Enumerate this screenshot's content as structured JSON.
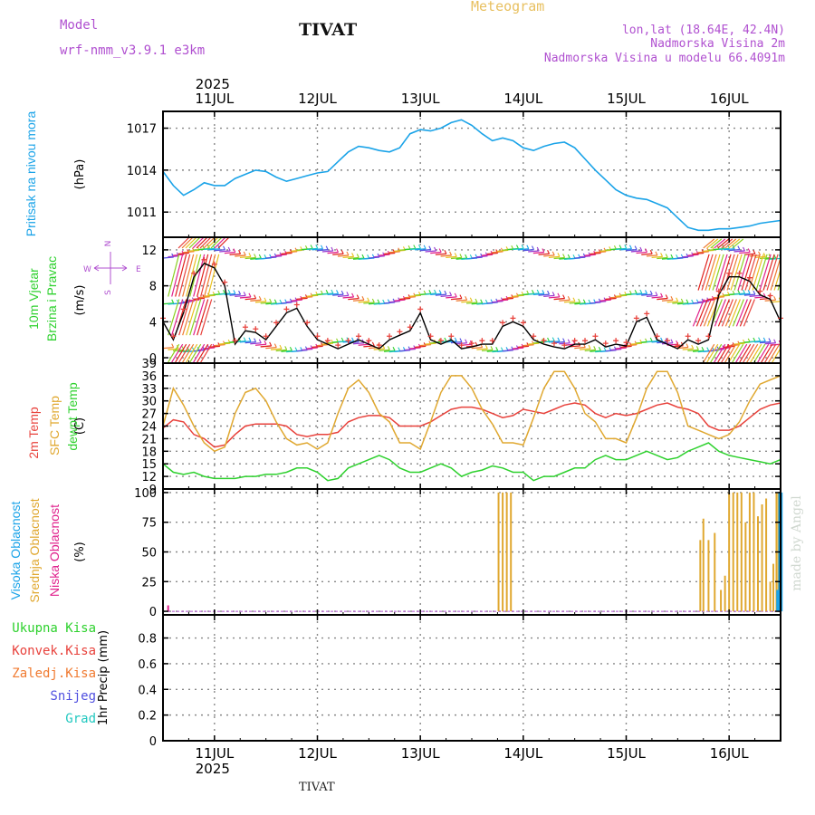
{
  "header": {
    "model_label": "Model",
    "model_name": "wrf-nmm_v3.9.1 e3km",
    "title": "TIVAT",
    "chart_name": "Meteogram",
    "lonlat": "lon,lat (18.64E, 42.4N)",
    "height_2m": "Nadmorska Visina 2m",
    "model_height": "Nadmorska Visina u modelu 66.4091m",
    "footer_title": "TIVAT",
    "watermark": "made by Angel"
  },
  "colors": {
    "pressure": "#1aa3e8",
    "t2m": "#e8423c",
    "sfc": "#e0a830",
    "dewpt": "#2ed12e",
    "wind_speed": "#000000",
    "high_cloud": "#1aa3e8",
    "mid_cloud": "#e0a830",
    "low_cloud": "#e0208c",
    "model": "#b050d0",
    "meteogram": "#e8c060"
  },
  "chart_data": [
    {
      "id": "pressure",
      "type": "line",
      "ylabel": "(hPa)",
      "side_labels": [
        "Pritisak na nivou mora"
      ],
      "yticks": [
        1011,
        1014,
        1017
      ],
      "ylim": [
        1009.2,
        1018.2
      ],
      "x": [
        10.5,
        10.6,
        10.7,
        10.8,
        10.9,
        11.0,
        11.1,
        11.2,
        11.3,
        11.4,
        11.5,
        11.6,
        11.7,
        11.8,
        11.9,
        12.0,
        12.1,
        12.2,
        12.3,
        12.4,
        12.5,
        12.6,
        12.7,
        12.8,
        12.9,
        13.0,
        13.1,
        13.2,
        13.3,
        13.4,
        13.5,
        13.6,
        13.7,
        13.8,
        13.9,
        14.0,
        14.1,
        14.2,
        14.3,
        14.4,
        14.5,
        14.6,
        14.7,
        14.8,
        14.9,
        15.0,
        15.1,
        15.2,
        15.3,
        15.4,
        15.5,
        15.6,
        15.7,
        15.8,
        15.9,
        16.0,
        16.1,
        16.2,
        16.3,
        16.4,
        16.5
      ],
      "values": [
        1013.9,
        1012.9,
        1012.2,
        1012.6,
        1013.1,
        1012.9,
        1012.9,
        1013.4,
        1013.7,
        1014.0,
        1013.9,
        1013.5,
        1013.2,
        1013.4,
        1013.6,
        1013.8,
        1013.9,
        1014.6,
        1015.3,
        1015.7,
        1015.6,
        1015.4,
        1015.3,
        1015.6,
        1016.6,
        1016.9,
        1016.8,
        1017.0,
        1017.4,
        1017.6,
        1017.2,
        1016.6,
        1016.1,
        1016.3,
        1016.1,
        1015.6,
        1015.4,
        1015.7,
        1015.9,
        1016.0,
        1015.6,
        1014.8,
        1014.0,
        1013.3,
        1012.6,
        1012.2,
        1012.0,
        1011.9,
        1011.6,
        1011.3,
        1010.6,
        1009.9,
        1009.7,
        1009.7,
        1009.8,
        1009.8,
        1009.9,
        1010.0,
        1010.2,
        1010.3,
        1010.4
      ]
    },
    {
      "id": "wind",
      "type": "line",
      "ylabel": "(m/s)",
      "side_labels": [
        "10m Vjetar",
        "Brzina i Pravac"
      ],
      "compass": [
        "W",
        "N",
        "E",
        "S"
      ],
      "yticks": [
        0,
        4,
        8,
        12
      ],
      "ylim": [
        -0.6,
        13.4
      ],
      "x": [
        10.5,
        10.6,
        10.7,
        10.8,
        10.9,
        11.0,
        11.1,
        11.2,
        11.3,
        11.4,
        11.5,
        11.6,
        11.7,
        11.8,
        11.9,
        12.0,
        12.1,
        12.2,
        12.3,
        12.4,
        12.5,
        12.6,
        12.7,
        12.8,
        12.9,
        13.0,
        13.1,
        13.2,
        13.3,
        13.4,
        13.5,
        13.6,
        13.7,
        13.8,
        13.9,
        14.0,
        14.1,
        14.2,
        14.3,
        14.4,
        14.5,
        14.6,
        14.7,
        14.8,
        14.9,
        15.0,
        15.1,
        15.2,
        15.3,
        15.4,
        15.5,
        15.6,
        15.7,
        15.8,
        15.9,
        16.0,
        16.1,
        16.2,
        16.3,
        16.4,
        16.5
      ],
      "values": [
        4,
        2,
        5,
        9,
        10.5,
        10,
        8,
        1.5,
        3,
        2.8,
        2,
        3.5,
        5,
        5.5,
        3.5,
        2,
        1.5,
        1,
        1.5,
        2,
        1.5,
        1,
        2,
        2.5,
        3,
        5,
        2,
        1.5,
        2,
        1,
        1.2,
        1.5,
        1.5,
        3.5,
        4,
        3.5,
        2,
        1.5,
        1.2,
        1,
        1.5,
        1.5,
        2,
        1.2,
        1.5,
        1.3,
        4,
        4.5,
        2,
        1.5,
        1,
        2,
        1.5,
        2,
        7,
        9,
        9,
        8.5,
        7,
        6.5,
        4
      ]
    },
    {
      "id": "temperature",
      "type": "line",
      "ylabel": "(C)",
      "side_labels": [
        "2m Temp",
        "SFC Temp",
        "dewpt Temp"
      ],
      "yticks": [
        9,
        12,
        15,
        18,
        21,
        24,
        27,
        30,
        33,
        36,
        39
      ],
      "ylim": [
        9,
        39
      ],
      "x": [
        10.5,
        10.6,
        10.7,
        10.8,
        10.9,
        11.0,
        11.1,
        11.2,
        11.3,
        11.4,
        11.5,
        11.6,
        11.7,
        11.8,
        11.9,
        12.0,
        12.1,
        12.2,
        12.3,
        12.4,
        12.5,
        12.6,
        12.7,
        12.8,
        12.9,
        13.0,
        13.1,
        13.2,
        13.3,
        13.4,
        13.5,
        13.6,
        13.7,
        13.8,
        13.9,
        14.0,
        14.1,
        14.2,
        14.3,
        14.4,
        14.5,
        14.6,
        14.7,
        14.8,
        14.9,
        15.0,
        15.1,
        15.2,
        15.3,
        15.4,
        15.5,
        15.6,
        15.7,
        15.8,
        15.9,
        16.0,
        16.1,
        16.2,
        16.3,
        16.4,
        16.5
      ],
      "series": [
        {
          "name": "2m Temp",
          "values": [
            23.5,
            25.5,
            25,
            22,
            21,
            19,
            19.5,
            22,
            24,
            24.5,
            24.5,
            24.5,
            24,
            22,
            21.5,
            22,
            22,
            22.5,
            25,
            26,
            26.5,
            26.5,
            26,
            24,
            24,
            24,
            25,
            26.5,
            28,
            28.5,
            28.5,
            28,
            27,
            26,
            26.5,
            28,
            27.5,
            27,
            28,
            29,
            29.5,
            29,
            27,
            26,
            27,
            26.5,
            27,
            28,
            29,
            29.5,
            28.5,
            28,
            27,
            24,
            23,
            23,
            24,
            26,
            28,
            29,
            29.5
          ]
        },
        {
          "name": "SFC Temp",
          "values": [
            24,
            33,
            29,
            24,
            20,
            18,
            19,
            27,
            32,
            33,
            30,
            25,
            21,
            19.5,
            20,
            18.5,
            20,
            27,
            33,
            35,
            32,
            27,
            25,
            20,
            20,
            18.5,
            25,
            32,
            36,
            36,
            33,
            28,
            24.5,
            20,
            20,
            19.5,
            26,
            33,
            37,
            37,
            33,
            27,
            25,
            21,
            21,
            20,
            26,
            33,
            37,
            37,
            32,
            24,
            23,
            22,
            21,
            22,
            25,
            30,
            34,
            35,
            36
          ]
        },
        {
          "name": "dewpt Temp",
          "values": [
            15,
            13,
            12.5,
            13,
            12,
            11.5,
            11.5,
            11.5,
            12,
            12,
            12.5,
            12.5,
            13,
            14,
            14,
            13,
            11,
            11.5,
            14,
            15,
            16,
            17,
            16,
            14,
            13,
            13,
            14,
            15,
            14,
            12,
            13,
            13.5,
            14.5,
            14,
            13,
            13,
            11,
            12,
            12,
            13,
            14,
            14,
            16,
            17,
            16,
            16,
            17,
            18,
            17,
            16,
            16.5,
            18,
            19,
            20,
            18,
            17,
            16.5,
            16,
            15.5,
            15,
            16
          ]
        }
      ]
    },
    {
      "id": "clouds",
      "type": "bar",
      "ylabel": "(%)",
      "side_labels": [
        "Visoka Oblacnost",
        "Srednja Oblacnost",
        "Niska Oblacnost"
      ],
      "yticks": [
        0,
        25,
        50,
        75,
        100
      ],
      "ylim": [
        -3,
        103
      ],
      "mid_x": [
        13.76,
        13.8,
        13.84,
        13.88,
        15.72,
        15.75,
        15.8,
        15.86,
        15.92,
        15.96,
        16.0,
        16.04,
        16.08,
        16.12,
        16.16,
        16.2,
        16.24,
        16.28,
        16.32,
        16.36,
        16.4,
        16.43,
        16.46,
        16.48,
        16.5
      ],
      "mid_values": [
        100,
        100,
        100,
        100,
        60,
        78,
        60,
        66,
        18,
        30,
        100,
        100,
        100,
        100,
        75,
        100,
        100,
        80,
        90,
        95,
        25,
        40,
        100,
        100,
        100
      ],
      "high_x": [
        16.46,
        16.48,
        16.5
      ],
      "high_values": [
        18,
        100,
        100
      ],
      "low_x": [
        10.55
      ],
      "low_values": [
        5
      ]
    },
    {
      "id": "precip",
      "type": "bar",
      "ylabel": "1hr Precip (mm)",
      "side_labels": [
        "Ukupna Kisa",
        "Konvek.Kisa",
        "Zaledj.Kisa",
        "Snijeg",
        "Grad"
      ],
      "yticks": [
        0,
        0.2,
        0.4,
        0.6,
        0.8
      ],
      "ylim": [
        0,
        0.98
      ],
      "values": []
    }
  ],
  "axis": {
    "year": "2025",
    "xrange": [
      10.5,
      16.5
    ],
    "ticks": [
      {
        "x": 11,
        "label": "11JUL"
      },
      {
        "x": 12,
        "label": "12JUL"
      },
      {
        "x": 13,
        "label": "13JUL"
      },
      {
        "x": 14,
        "label": "14JUL"
      },
      {
        "x": 15,
        "label": "15JUL"
      },
      {
        "x": 16,
        "label": "16JUL"
      }
    ]
  }
}
